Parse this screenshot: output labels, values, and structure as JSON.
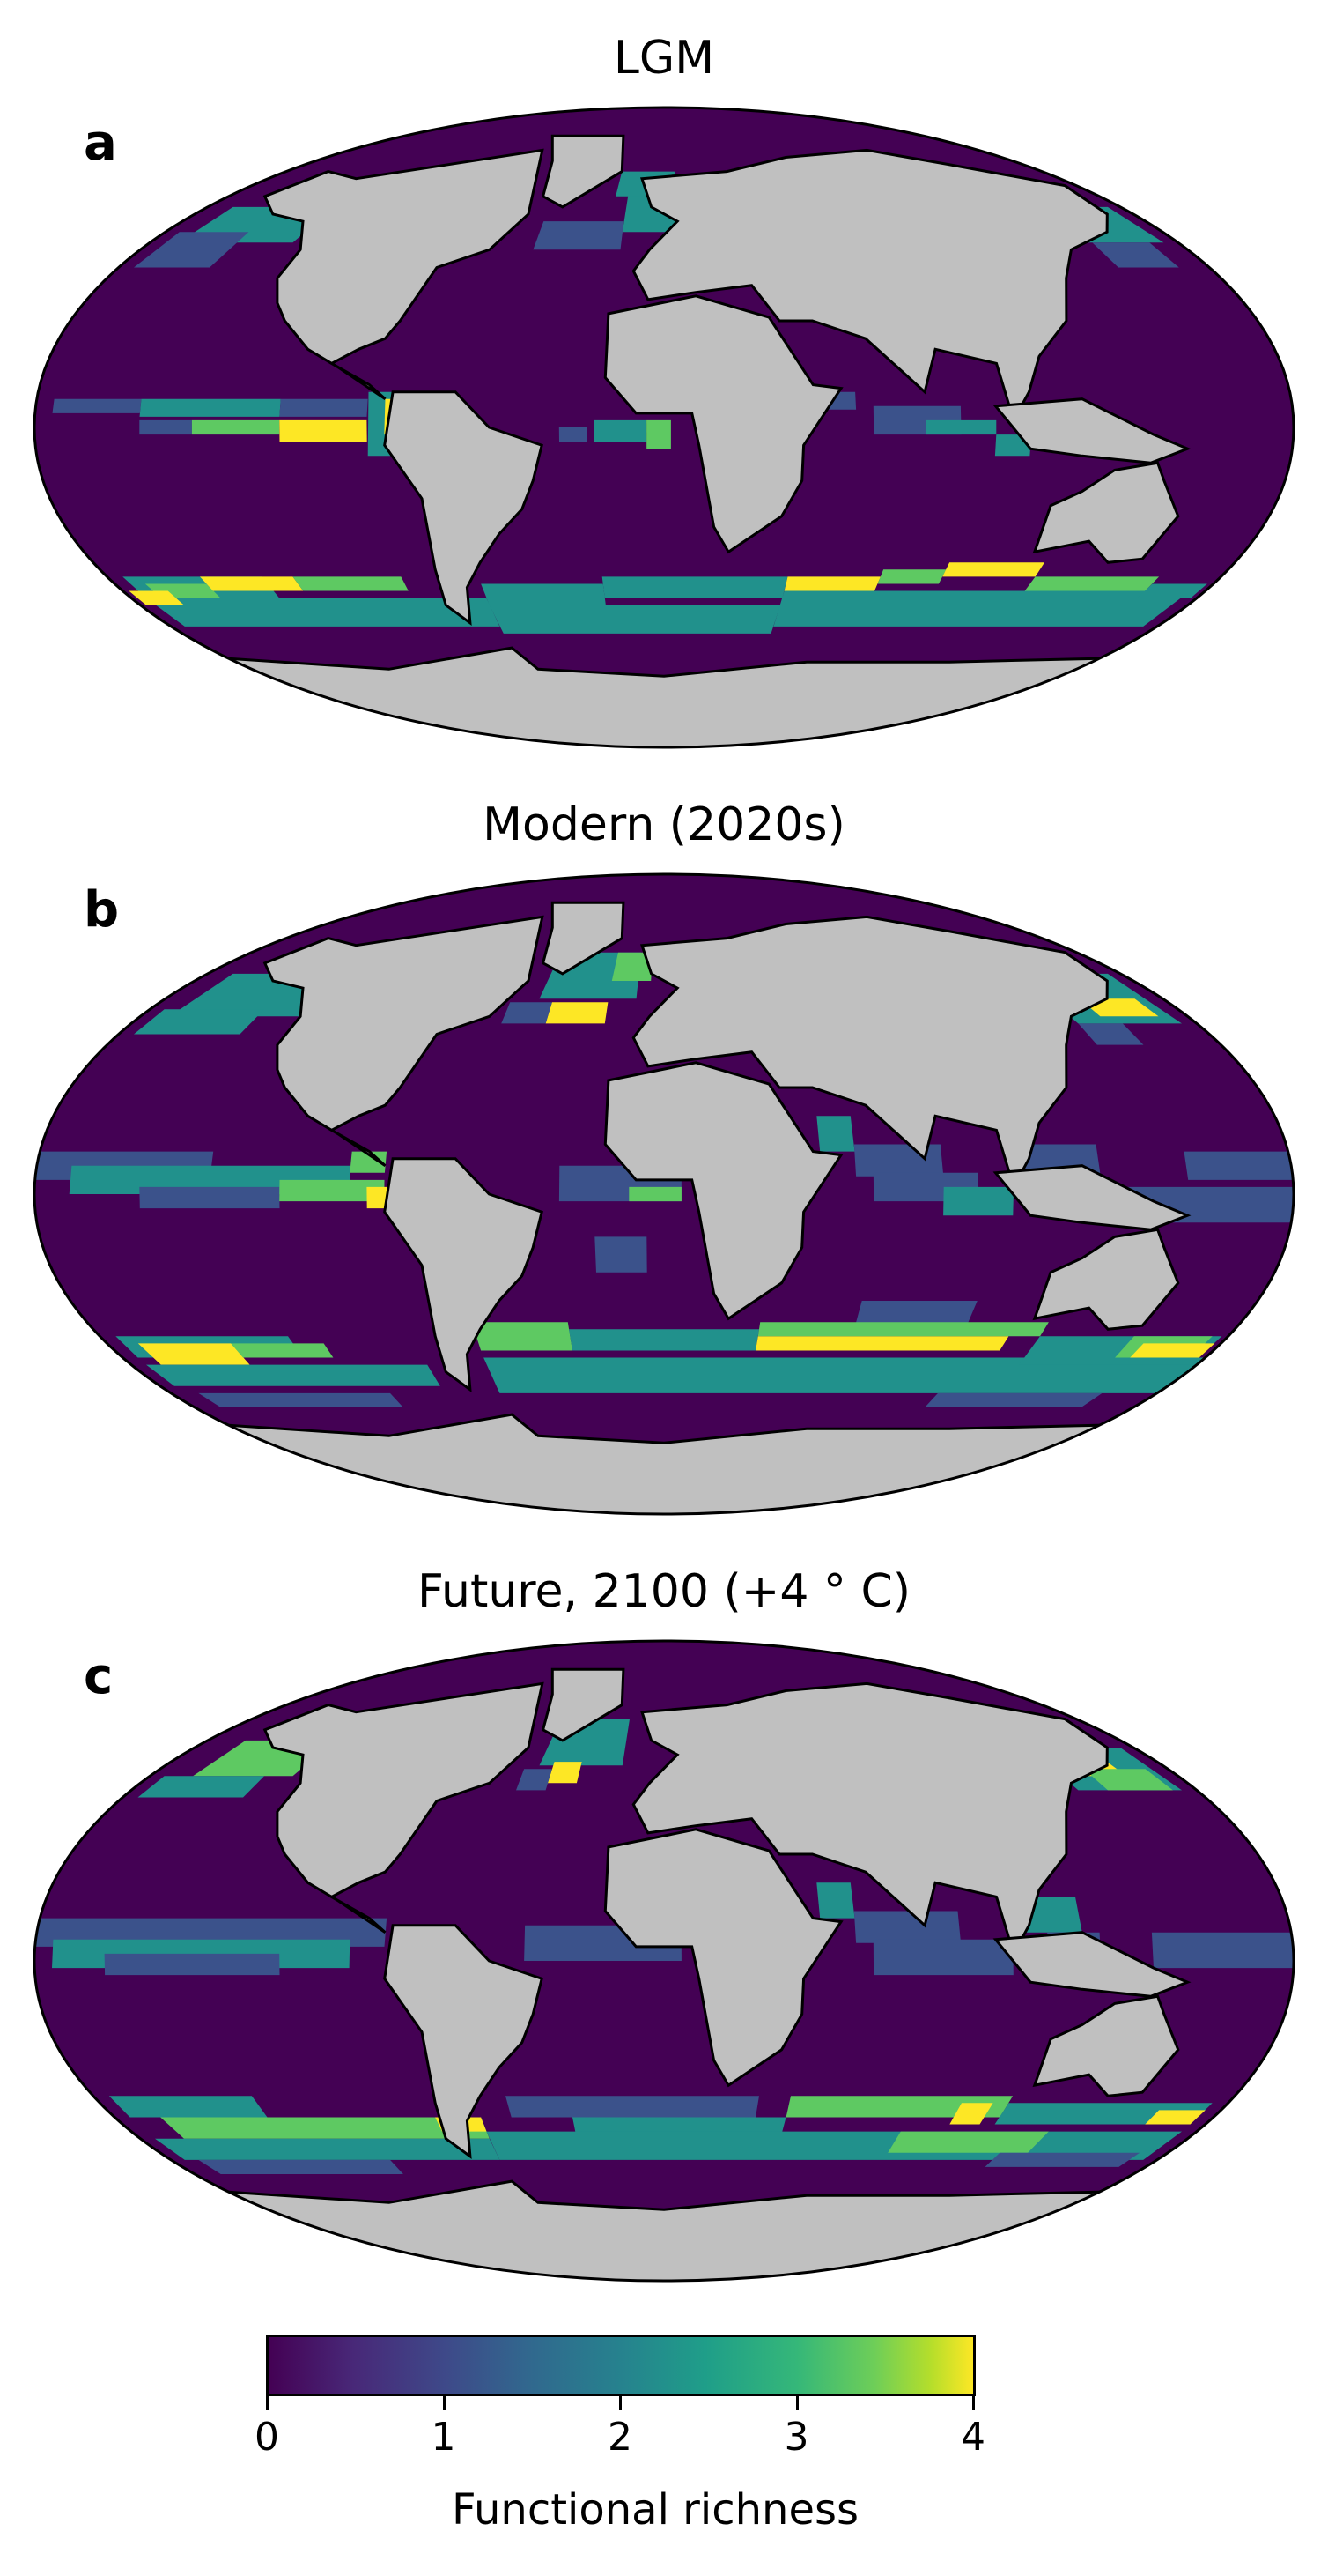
{
  "panels": [
    {
      "letter": "a",
      "title": "LGM",
      "richness_blocks": [
        {
          "lon": [
            -170,
            -130
          ],
          "lat": [
            52,
            62
          ],
          "v": 2
        },
        {
          "lon": [
            -175,
            -150
          ],
          "lat": [
            45,
            55
          ],
          "v": 1
        },
        {
          "lon": [
            -15,
            15
          ],
          "lat": [
            55,
            68
          ],
          "v": 2
        },
        {
          "lon": [
            -45,
            -15
          ],
          "lat": [
            50,
            58
          ],
          "v": 1
        },
        {
          "lon": [
            -20,
            5
          ],
          "lat": [
            65,
            72
          ],
          "v": 2
        },
        {
          "lon": [
            145,
            175
          ],
          "lat": [
            52,
            62
          ],
          "v": 2
        },
        {
          "lon": [
            150,
            170
          ],
          "lat": [
            45,
            52
          ],
          "v": 1
        },
        {
          "lon": [
            -175,
            -150
          ],
          "lat": [
            4,
            8
          ],
          "v": 1
        },
        {
          "lon": [
            -150,
            -110
          ],
          "lat": [
            3,
            8
          ],
          "v": 2
        },
        {
          "lon": [
            -110,
            -85
          ],
          "lat": [
            3,
            8
          ],
          "v": 1
        },
        {
          "lon": [
            -85,
            -78
          ],
          "lat": [
            -8,
            10
          ],
          "v": 2
        },
        {
          "lon": [
            -80,
            -75
          ],
          "lat": [
            -2,
            8
          ],
          "v": 4
        },
        {
          "lon": [
            -150,
            -135
          ],
          "lat": [
            -2,
            2
          ],
          "v": 1
        },
        {
          "lon": [
            -135,
            -110
          ],
          "lat": [
            -2,
            2
          ],
          "v": 3
        },
        {
          "lon": [
            -110,
            -85
          ],
          "lat": [
            -4,
            2
          ],
          "v": 4
        },
        {
          "lon": [
            -20,
            -5
          ],
          "lat": [
            -4,
            2
          ],
          "v": 2
        },
        {
          "lon": [
            -5,
            2
          ],
          "lat": [
            -6,
            2
          ],
          "v": 3
        },
        {
          "lon": [
            -30,
            -22
          ],
          "lat": [
            -4,
            0
          ],
          "v": 1
        },
        {
          "lon": [
            45,
            55
          ],
          "lat": [
            5,
            10
          ],
          "v": 1
        },
        {
          "lon": [
            60,
            85
          ],
          "lat": [
            -2,
            6
          ],
          "v": 1
        },
        {
          "lon": [
            75,
            95
          ],
          "lat": [
            -2,
            2
          ],
          "v": 2
        },
        {
          "lon": [
            95,
            105
          ],
          "lat": [
            -8,
            -2
          ],
          "v": 2
        },
        {
          "lon": [
            -175,
            -130
          ],
          "lat": [
            -48,
            -42
          ],
          "v": 2
        },
        {
          "lon": [
            -170,
            -150
          ],
          "lat": [
            -50,
            -44
          ],
          "v": 3
        },
        {
          "lon": [
            -150,
            -120
          ],
          "lat": [
            -46,
            -42
          ],
          "v": 4
        },
        {
          "lon": [
            -120,
            -85
          ],
          "lat": [
            -46,
            -42
          ],
          "v": 3
        },
        {
          "lon": [
            -175,
            -60
          ],
          "lat": [
            -56,
            -48
          ],
          "v": 2
        },
        {
          "lon": [
            -60,
            -20
          ],
          "lat": [
            -50,
            -44
          ],
          "v": 2
        },
        {
          "lon": [
            -20,
            40
          ],
          "lat": [
            -48,
            -42
          ],
          "v": 2
        },
        {
          "lon": [
            40,
            70
          ],
          "lat": [
            -46,
            -42
          ],
          "v": 4
        },
        {
          "lon": [
            70,
            90
          ],
          "lat": [
            -44,
            -40
          ],
          "v": 3
        },
        {
          "lon": [
            90,
            120
          ],
          "lat": [
            -42,
            -38
          ],
          "v": 4
        },
        {
          "lon": [
            120,
            160
          ],
          "lat": [
            -46,
            -42
          ],
          "v": 3
        },
        {
          "lon": [
            40,
            175
          ],
          "lat": [
            -56,
            -46
          ],
          "v": 2
        },
        {
          "lon": [
            -60,
            40
          ],
          "lat": [
            -58,
            -50
          ],
          "v": 2
        },
        {
          "lon": [
            160,
            178
          ],
          "lat": [
            -48,
            -44
          ],
          "v": 2
        },
        {
          "lon": [
            -178,
            -165
          ],
          "lat": [
            -50,
            -46
          ],
          "v": 4
        }
      ]
    },
    {
      "letter": "b",
      "title": "Modern (2020s)",
      "richness_blocks": [
        {
          "lon": [
            -170,
            -125
          ],
          "lat": [
            50,
            62
          ],
          "v": 2
        },
        {
          "lon": [
            -175,
            -140
          ],
          "lat": [
            45,
            52
          ],
          "v": 2
        },
        {
          "lon": [
            -130,
            -115
          ],
          "lat": [
            55,
            62
          ],
          "v": 1
        },
        {
          "lon": [
            -45,
            -10
          ],
          "lat": [
            55,
            68
          ],
          "v": 2
        },
        {
          "lon": [
            -40,
            -20
          ],
          "lat": [
            48,
            54
          ],
          "v": 4
        },
        {
          "lon": [
            -20,
            -5
          ],
          "lat": [
            60,
            68
          ],
          "v": 3
        },
        {
          "lon": [
            -55,
            -40
          ],
          "lat": [
            48,
            54
          ],
          "v": 1
        },
        {
          "lon": [
            140,
            175
          ],
          "lat": [
            48,
            62
          ],
          "v": 2
        },
        {
          "lon": [
            150,
            170
          ],
          "lat": [
            50,
            55
          ],
          "v": 4
        },
        {
          "lon": [
            140,
            155
          ],
          "lat": [
            42,
            48
          ],
          "v": 1
        },
        {
          "lon": [
            -180,
            -130
          ],
          "lat": [
            4,
            12
          ],
          "v": 1
        },
        {
          "lon": [
            -170,
            -90
          ],
          "lat": [
            0,
            8
          ],
          "v": 2
        },
        {
          "lon": [
            -150,
            -110
          ],
          "lat": [
            -4,
            2
          ],
          "v": 1
        },
        {
          "lon": [
            -110,
            -80
          ],
          "lat": [
            -2,
            4
          ],
          "v": 3
        },
        {
          "lon": [
            -85,
            -78
          ],
          "lat": [
            -4,
            2
          ],
          "v": 4
        },
        {
          "lon": [
            -90,
            -80
          ],
          "lat": [
            6,
            12
          ],
          "v": 3
        },
        {
          "lon": [
            -30,
            5
          ],
          "lat": [
            -2,
            8
          ],
          "v": 1
        },
        {
          "lon": [
            -10,
            5
          ],
          "lat": [
            -2,
            2
          ],
          "v": 3
        },
        {
          "lon": [
            45,
            55
          ],
          "lat": [
            12,
            22
          ],
          "v": 2
        },
        {
          "lon": [
            55,
            80
          ],
          "lat": [
            5,
            14
          ],
          "v": 1
        },
        {
          "lon": [
            60,
            90
          ],
          "lat": [
            -2,
            6
          ],
          "v": 1
        },
        {
          "lon": [
            80,
            100
          ],
          "lat": [
            -6,
            2
          ],
          "v": 2
        },
        {
          "lon": [
            100,
            125
          ],
          "lat": [
            5,
            14
          ],
          "v": 1
        },
        {
          "lon": [
            150,
            180
          ],
          "lat": [
            4,
            12
          ],
          "v": 1
        },
        {
          "lon": [
            130,
            180
          ],
          "lat": [
            -8,
            2
          ],
          "v": 1
        },
        {
          "lon": [
            -20,
            -5
          ],
          "lat": [
            -22,
            -12
          ],
          "v": 1
        },
        {
          "lon": [
            60,
            95
          ],
          "lat": [
            -38,
            -30
          ],
          "v": 1
        },
        {
          "lon": [
            -175,
            -120
          ],
          "lat": [
            -46,
            -40
          ],
          "v": 2
        },
        {
          "lon": [
            -170,
            -140
          ],
          "lat": [
            -48,
            -42
          ],
          "v": 4
        },
        {
          "lon": [
            -140,
            -110
          ],
          "lat": [
            -46,
            -42
          ],
          "v": 3
        },
        {
          "lon": [
            -175,
            -80
          ],
          "lat": [
            -54,
            -48
          ],
          "v": 2
        },
        {
          "lon": [
            -60,
            -30
          ],
          "lat": [
            -44,
            -36
          ],
          "v": 3
        },
        {
          "lon": [
            -30,
            30
          ],
          "lat": [
            -44,
            -38
          ],
          "v": 2
        },
        {
          "lon": [
            30,
            110
          ],
          "lat": [
            -44,
            -40
          ],
          "v": 4
        },
        {
          "lon": [
            30,
            120
          ],
          "lat": [
            -40,
            -36
          ],
          "v": 3
        },
        {
          "lon": [
            -60,
            180
          ],
          "lat": [
            -56,
            -46
          ],
          "v": 2
        },
        {
          "lon": [
            120,
            178
          ],
          "lat": [
            -48,
            -40
          ],
          "v": 2
        },
        {
          "lon": [
            150,
            175
          ],
          "lat": [
            -46,
            -40
          ],
          "v": 3
        },
        {
          "lon": [
            155,
            178
          ],
          "lat": [
            -46,
            -42
          ],
          "v": 4
        },
        {
          "lon": [
            -170,
            -100
          ],
          "lat": [
            -60,
            -56
          ],
          "v": 1
        },
        {
          "lon": [
            100,
            160
          ],
          "lat": [
            -60,
            -56
          ],
          "v": 1
        }
      ]
    },
    {
      "letter": "c",
      "title": "Future, 2100 (+4 ° C)",
      "richness_blocks": [
        {
          "lon": [
            -165,
            -130
          ],
          "lat": [
            52,
            62
          ],
          "v": 3
        },
        {
          "lon": [
            -175,
            -140
          ],
          "lat": [
            46,
            52
          ],
          "v": 2
        },
        {
          "lon": [
            -130,
            -115
          ],
          "lat": [
            56,
            62
          ],
          "v": 1
        },
        {
          "lon": [
            -45,
            -15
          ],
          "lat": [
            55,
            68
          ],
          "v": 2
        },
        {
          "lon": [
            -40,
            -30
          ],
          "lat": [
            50,
            56
          ],
          "v": 4
        },
        {
          "lon": [
            -50,
            -40
          ],
          "lat": [
            48,
            54
          ],
          "v": 1
        },
        {
          "lon": [
            140,
            175
          ],
          "lat": [
            48,
            60
          ],
          "v": 2
        },
        {
          "lon": [
            145,
            162
          ],
          "lat": [
            52,
            58
          ],
          "v": 4
        },
        {
          "lon": [
            150,
            172
          ],
          "lat": [
            48,
            54
          ],
          "v": 3
        },
        {
          "lon": [
            -180,
            -80
          ],
          "lat": [
            4,
            12
          ],
          "v": 1
        },
        {
          "lon": [
            -175,
            -90
          ],
          "lat": [
            -2,
            6
          ],
          "v": 2
        },
        {
          "lon": [
            -160,
            -110
          ],
          "lat": [
            -4,
            2
          ],
          "v": 1
        },
        {
          "lon": [
            -40,
            5
          ],
          "lat": [
            0,
            10
          ],
          "v": 1
        },
        {
          "lon": [
            45,
            55
          ],
          "lat": [
            12,
            22
          ],
          "v": 2
        },
        {
          "lon": [
            55,
            85
          ],
          "lat": [
            5,
            14
          ],
          "v": 1
        },
        {
          "lon": [
            60,
            100
          ],
          "lat": [
            -4,
            6
          ],
          "v": 1
        },
        {
          "lon": [
            100,
            120
          ],
          "lat": [
            8,
            18
          ],
          "v": 2
        },
        {
          "lon": [
            110,
            125
          ],
          "lat": [
            -2,
            8
          ],
          "v": 1
        },
        {
          "lon": [
            140,
            180
          ],
          "lat": [
            -2,
            8
          ],
          "v": 1
        },
        {
          "lon": [
            -175,
            -130
          ],
          "lat": [
            -44,
            -38
          ],
          "v": 2
        },
        {
          "lon": [
            -165,
            -60
          ],
          "lat": [
            -50,
            -44
          ],
          "v": 3
        },
        {
          "lon": [
            -75,
            -60
          ],
          "lat": [
            -48,
            -44
          ],
          "v": 4
        },
        {
          "lon": [
            -175,
            -60
          ],
          "lat": [
            -56,
            -50
          ],
          "v": 2
        },
        {
          "lon": [
            -50,
            30
          ],
          "lat": [
            -44,
            -38
          ],
          "v": 1
        },
        {
          "lon": [
            -30,
            40
          ],
          "lat": [
            -50,
            -44
          ],
          "v": 2
        },
        {
          "lon": [
            40,
            110
          ],
          "lat": [
            -44,
            -38
          ],
          "v": 3
        },
        {
          "lon": [
            95,
            105
          ],
          "lat": [
            -46,
            -40
          ],
          "v": 4
        },
        {
          "lon": [
            110,
            175
          ],
          "lat": [
            -46,
            -40
          ],
          "v": 2
        },
        {
          "lon": [
            160,
            175
          ],
          "lat": [
            -46,
            -42
          ],
          "v": 4
        },
        {
          "lon": [
            -60,
            175
          ],
          "lat": [
            -56,
            -48
          ],
          "v": 2
        },
        {
          "lon": [
            80,
            130
          ],
          "lat": [
            -54,
            -48
          ],
          "v": 3
        },
        {
          "lon": [
            -170,
            -100
          ],
          "lat": [
            -60,
            -56
          ],
          "v": 1
        },
        {
          "lon": [
            120,
            170
          ],
          "lat": [
            -58,
            -54
          ],
          "v": 1
        }
      ]
    }
  ],
  "colorbar": {
    "label": "Functional richness",
    "ticks": [
      "0",
      "1",
      "2",
      "3",
      "4"
    ],
    "min": 0,
    "max": 4,
    "colormap": "viridis"
  },
  "colors": {
    "land": "#c0c0c0",
    "ocean_low": "#440154",
    "scale": [
      "#440154",
      "#3b528b",
      "#21918c",
      "#5ec962",
      "#fde725"
    ]
  }
}
